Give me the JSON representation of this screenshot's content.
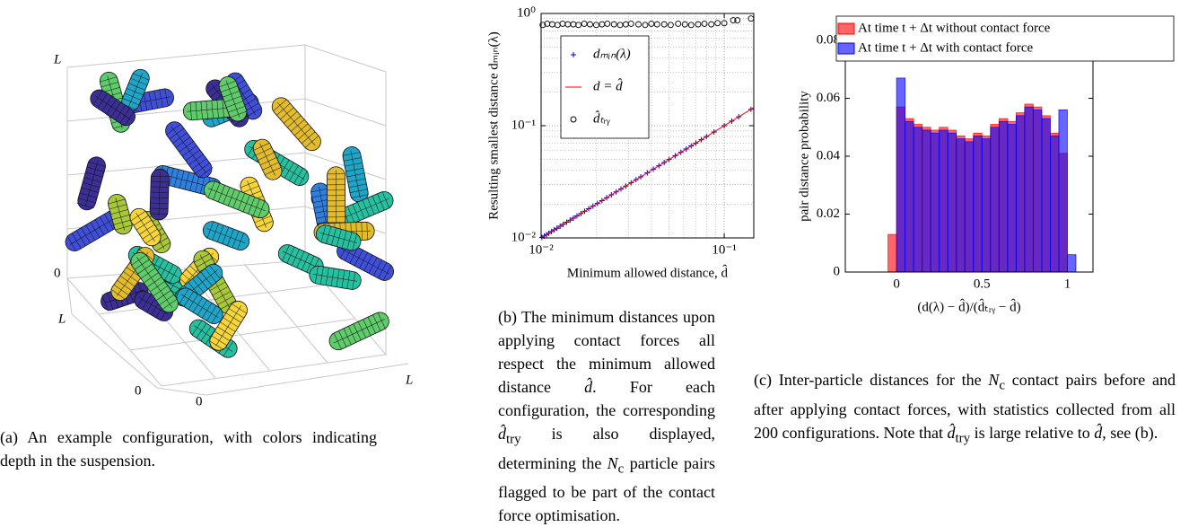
{
  "panel_a": {
    "z_top": "L",
    "z_bottom": "0",
    "y_far": "L",
    "y_near": "0",
    "x_near": "0",
    "x_far": "L"
  },
  "chart_data": [
    {
      "type": "scatter",
      "xlog": true,
      "ylog": true,
      "grid": true,
      "legend": "upper left",
      "xlabel": "Minimum allowed distance, d̂",
      "ylabel": "Resulting smallest distance dₘᵢₙ(λ)",
      "xlim": [
        0.01,
        0.145
      ],
      "ylim": [
        0.01,
        1
      ],
      "xticks": [
        {
          "value": 0.01,
          "label": "10⁻²"
        },
        {
          "value": 0.1,
          "label": "10⁻¹"
        }
      ],
      "yticks": [
        {
          "value": 0.01,
          "label": "10⁻²"
        },
        {
          "value": 0.1,
          "label": "10⁻¹"
        },
        {
          "value": 1,
          "label": "10⁰"
        }
      ],
      "xminor": [
        0.02,
        0.03,
        0.04,
        0.05,
        0.06,
        0.07,
        0.08,
        0.09
      ],
      "yminor": [
        0.02,
        0.03,
        0.04,
        0.05,
        0.06,
        0.07,
        0.08,
        0.09,
        0.2,
        0.3,
        0.4,
        0.5,
        0.6,
        0.7,
        0.8,
        0.9
      ],
      "series": [
        {
          "name": "dₘᵢₙ(λ)",
          "marker": "+",
          "color": "#0000cc",
          "x": [
            0.0101,
            0.0104,
            0.0107,
            0.011,
            0.0114,
            0.0118,
            0.0122,
            0.0127,
            0.0132,
            0.0138,
            0.0144,
            0.015,
            0.0157,
            0.0165,
            0.0173,
            0.0182,
            0.0192,
            0.0203,
            0.0215,
            0.0228,
            0.0242,
            0.0257,
            0.0273,
            0.029,
            0.031,
            0.033,
            0.035,
            0.038,
            0.041,
            0.044,
            0.047,
            0.05,
            0.054,
            0.058,
            0.062,
            0.066,
            0.07,
            0.075,
            0.08,
            0.088,
            0.1,
            0.11,
            0.12,
            0.14
          ],
          "values": [
            0.0101,
            0.0104,
            0.0107,
            0.011,
            0.0114,
            0.0118,
            0.0122,
            0.0127,
            0.0132,
            0.0138,
            0.0144,
            0.015,
            0.0157,
            0.0165,
            0.0173,
            0.0182,
            0.0192,
            0.0203,
            0.0215,
            0.0228,
            0.0242,
            0.0257,
            0.0273,
            0.029,
            0.031,
            0.033,
            0.035,
            0.038,
            0.041,
            0.044,
            0.047,
            0.05,
            0.054,
            0.058,
            0.062,
            0.066,
            0.07,
            0.075,
            0.08,
            0.088,
            0.1,
            0.11,
            0.12,
            0.14
          ]
        },
        {
          "name": "d = d̂",
          "marker": "line",
          "color": "#ff0000",
          "x": [
            0.01,
            0.145
          ],
          "values": [
            0.01,
            0.145
          ]
        },
        {
          "name": "d̂ₜᵣᵧ",
          "marker": "o",
          "color": "#000000",
          "x": [
            0.0102,
            0.0108,
            0.0115,
            0.0123,
            0.0131,
            0.014,
            0.015,
            0.016,
            0.0172,
            0.0185,
            0.02,
            0.0215,
            0.023,
            0.025,
            0.027,
            0.029,
            0.031,
            0.034,
            0.037,
            0.04,
            0.043,
            0.047,
            0.051,
            0.056,
            0.061,
            0.066,
            0.072,
            0.078,
            0.085,
            0.092,
            0.1,
            0.112,
            0.118,
            0.14
          ],
          "values": [
            0.79,
            0.81,
            0.8,
            0.79,
            0.81,
            0.8,
            0.8,
            0.79,
            0.81,
            0.8,
            0.79,
            0.8,
            0.81,
            0.8,
            0.79,
            0.8,
            0.81,
            0.8,
            0.79,
            0.81,
            0.8,
            0.8,
            0.79,
            0.81,
            0.8,
            0.79,
            0.8,
            0.81,
            0.8,
            0.82,
            0.82,
            0.87,
            0.87,
            0.9
          ]
        }
      ]
    },
    {
      "type": "histogram",
      "grid": false,
      "legend": "upper right",
      "xlabel": "(d(λ) − d̂)/(d̂ₜᵣᵧ − d̂)",
      "ylabel": "pair distance probability",
      "xlim": [
        -0.3,
        1.15
      ],
      "ylim": [
        0,
        0.08
      ],
      "xticks": [
        0,
        0.5,
        1
      ],
      "yticks": [
        0,
        0.02,
        0.04,
        0.06,
        0.08
      ],
      "bins": [
        -0.2,
        -0.15,
        -0.1,
        -0.05,
        0,
        0.05,
        0.1,
        0.15,
        0.2,
        0.25,
        0.3,
        0.35,
        0.4,
        0.45,
        0.5,
        0.55,
        0.6,
        0.65,
        0.7,
        0.75,
        0.8,
        0.85,
        0.9,
        0.95,
        1,
        1.05,
        1.1,
        1.15
      ],
      "series": [
        {
          "name": "At time t + Δt without contact force",
          "color": "#ff0000",
          "values": [
            0,
            0,
            0,
            0.013,
            0.057,
            0.053,
            0.051,
            0.05,
            0.049,
            0.05,
            0.049,
            0.047,
            0.046,
            0.048,
            0.047,
            0.051,
            0.053,
            0.052,
            0.055,
            0.058,
            0.057,
            0.054,
            0.048,
            0.041,
            0,
            0,
            0
          ]
        },
        {
          "name": "At time t + Δt with contact force",
          "color": "#0000ff",
          "values": [
            0,
            0,
            0,
            0,
            0.067,
            0.052,
            0.05,
            0.049,
            0.048,
            0.049,
            0.048,
            0.046,
            0.045,
            0.047,
            0.046,
            0.05,
            0.052,
            0.051,
            0.054,
            0.057,
            0.056,
            0.053,
            0.047,
            0.056,
            0.006,
            0,
            0
          ]
        }
      ]
    }
  ],
  "captions": {
    "a": [
      "(a) An example configuration, with colors indicating depth in the suspension."
    ],
    "b": [
      "(b) The minimum distances upon applying contact forces all respect the minimum allowed distance ",
      "d̂",
      ". For each configuration, the corresponding ",
      "d̂",
      "try",
      " is also displayed, determining the ",
      "N",
      "c",
      " particle pairs flagged to be part of the contact force optimisation."
    ],
    "c": [
      "(c) Inter-particle distances for the ",
      "N",
      "c",
      " contact pairs before and after applying contact forces, with statistics collected from all 200 configurations. Note that ",
      "d̂",
      "try",
      " is large relative to ",
      "d̂",
      ", see (b)."
    ]
  }
}
